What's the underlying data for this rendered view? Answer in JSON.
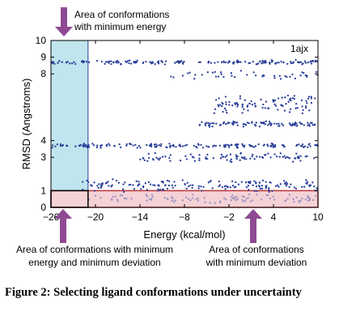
{
  "chart_data": {
    "type": "scatter",
    "panel_label": "1ajx",
    "xlabel": "Energy (kcal/mol)",
    "ylabel": "RMSD (Angstroms)",
    "xlim": [
      -26,
      10
    ],
    "ylim": [
      0,
      10
    ],
    "x_ticks": [
      -26,
      -20,
      -14,
      -8,
      -2,
      4,
      10
    ],
    "x_tick_labels": [
      "−26",
      "−20",
      "−14",
      "−8",
      "−2",
      "4",
      "10"
    ],
    "y_ticks": [
      0,
      1,
      3,
      4,
      8,
      9,
      10
    ],
    "y_tick_labels": [
      "0",
      "1",
      "3",
      "4",
      "8",
      "9",
      "10"
    ],
    "grid": false,
    "colors": {
      "points": "#2a3f9a",
      "points_light": "#9b93c4",
      "min_energy_region_fill": "#bfe6ee",
      "min_energy_region_stroke": "#2a3f9a",
      "min_deviation_region_fill": "#f4d2d6",
      "min_deviation_region_stroke": "#b8343a",
      "overlap_region_stroke": "#000000",
      "arrow": "#8e4a93"
    },
    "point_bands": [
      {
        "rmsd_center": 8.7,
        "spread": 0.15,
        "x_range": [
          -26,
          10
        ],
        "density": "dense"
      },
      {
        "rmsd_center": 7.9,
        "spread": 0.3,
        "x_range": [
          -10,
          10
        ],
        "density": "sparse"
      },
      {
        "rmsd_center": 6.2,
        "spread": 0.6,
        "x_range": [
          -4,
          10
        ],
        "density": "medium"
      },
      {
        "rmsd_center": 5.0,
        "spread": 0.2,
        "x_range": [
          -6,
          10
        ],
        "density": "medium"
      },
      {
        "rmsd_center": 3.7,
        "spread": 0.15,
        "x_range": [
          -26,
          10
        ],
        "density": "dense"
      },
      {
        "rmsd_center": 3.0,
        "spread": 0.3,
        "x_range": [
          -14,
          10
        ],
        "density": "medium"
      },
      {
        "rmsd_center": 1.3,
        "spread": 0.4,
        "x_range": [
          -22,
          10
        ],
        "density": "dense"
      },
      {
        "rmsd_center": 0.5,
        "spread": 0.3,
        "x_range": [
          -21,
          10
        ],
        "density": "medium",
        "light": true
      }
    ],
    "regions": [
      {
        "name": "min-energy",
        "x_range": [
          -26,
          -21
        ],
        "y_range": [
          0,
          10
        ]
      },
      {
        "name": "min-deviation",
        "x_range": [
          -26,
          10
        ],
        "y_range": [
          0,
          1
        ]
      },
      {
        "name": "overlap",
        "x_range": [
          -26,
          -21
        ],
        "y_range": [
          0,
          1
        ]
      }
    ]
  },
  "annotations": {
    "top": {
      "line1": "Area of conformations",
      "line2": "with minimum energy"
    },
    "bottom_left": {
      "line1": "Area of conformations with minimum",
      "line2": "energy and minimum deviation"
    },
    "bottom_right": {
      "line1": "Area of conformations",
      "line2": "with minimum deviation"
    }
  },
  "caption": {
    "label": "Figure 2:",
    "text": "Selecting ligand conformations under uncertainty"
  }
}
